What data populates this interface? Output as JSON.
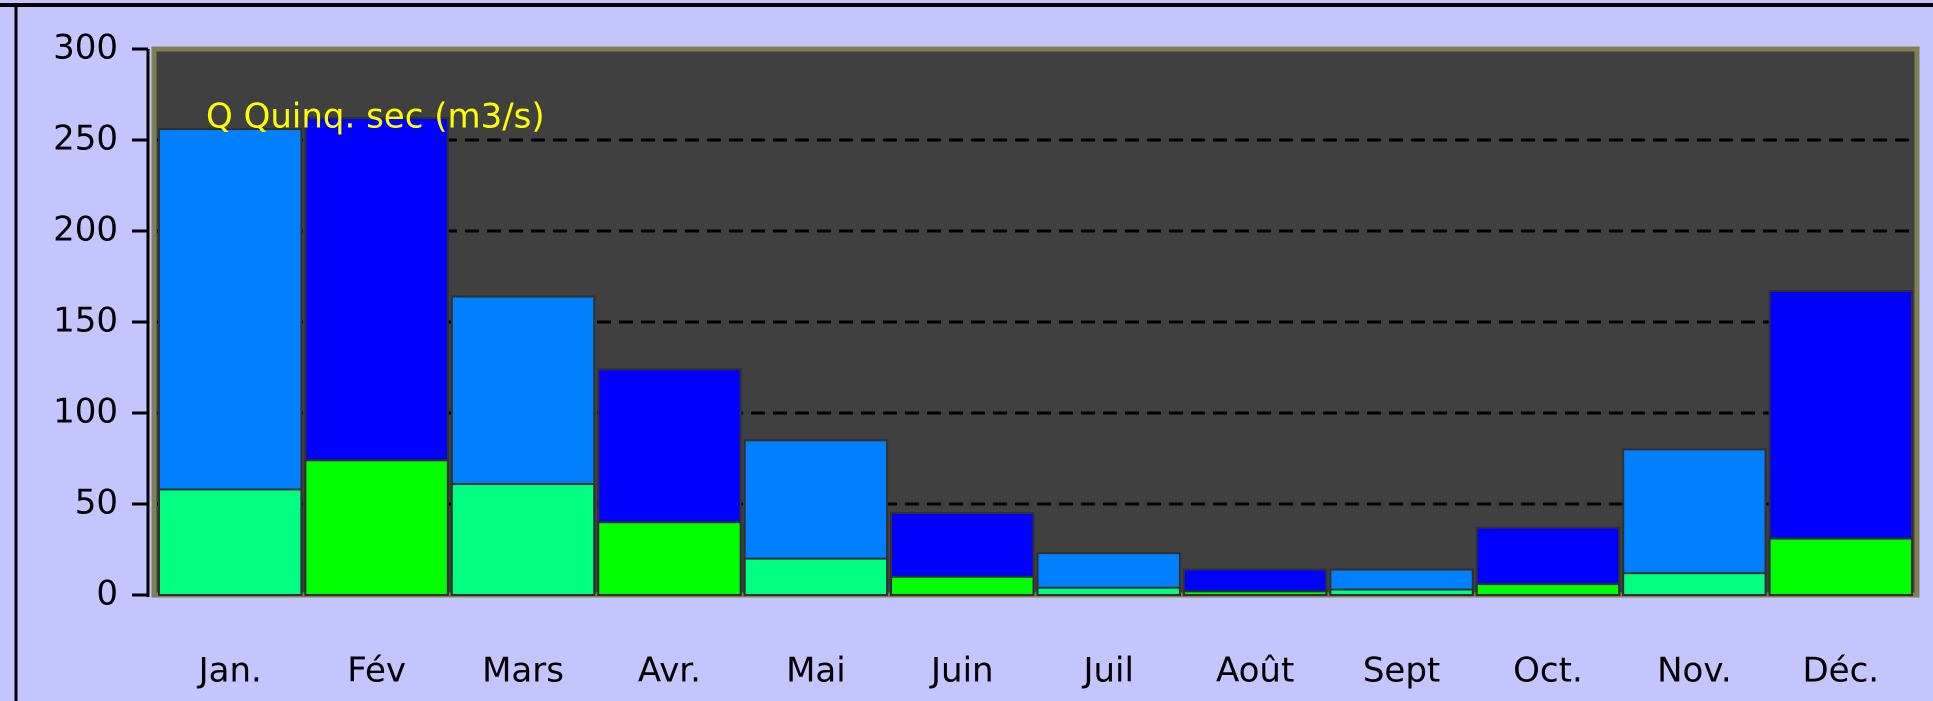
{
  "chart_data": {
    "type": "bar",
    "title": "Q Quinq. sec (m3/s)",
    "categories": [
      "Jan.",
      "Fév",
      "Mars",
      "Avr.",
      "Mai",
      "Juin",
      "Juil",
      "Août",
      "Sept",
      "Oct.",
      "Nov.",
      "Déc."
    ],
    "series": [
      {
        "colors": [
          "#0080ff",
          "#0000ff",
          "#0080ff",
          "#0000ff",
          "#0080ff",
          "#0000ff",
          "#0080ff",
          "#0000ff",
          "#0080ff",
          "#0000ff",
          "#0080ff",
          "#0000ff"
        ],
        "values": [
          256,
          262,
          164,
          124,
          85,
          45,
          23,
          14,
          14,
          37,
          80,
          167
        ]
      },
      {
        "name": "Q Quinq. sec (m3/s)",
        "colors": [
          "#00ff80",
          "#00ff00",
          "#00ff80",
          "#00ff00",
          "#00ff80",
          "#00ff00",
          "#00ff80",
          "#00ff00",
          "#00ff80",
          "#00ff00",
          "#00ff80",
          "#00ff00"
        ],
        "values": [
          58,
          74,
          61,
          40,
          20,
          10,
          4,
          2,
          3,
          6,
          12,
          31
        ]
      }
    ],
    "ylim": [
      0,
      300
    ],
    "yticks": [
      0,
      50,
      100,
      150,
      200,
      250,
      300
    ],
    "grid": true
  }
}
